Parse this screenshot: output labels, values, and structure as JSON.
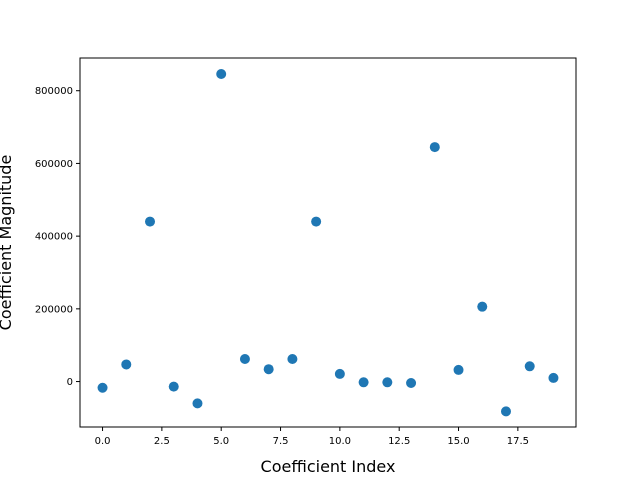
{
  "chart_data": {
    "type": "scatter",
    "title": "",
    "xlabel": "Coefficient Index",
    "ylabel": "Coefficient Magnitude",
    "xlim": [
      -0.95,
      19.95
    ],
    "ylim": [
      -125000,
      890000
    ],
    "xticks": [
      0.0,
      2.5,
      5.0,
      7.5,
      10.0,
      12.5,
      15.0,
      17.5
    ],
    "xtick_labels": [
      "0.0",
      "2.5",
      "5.0",
      "7.5",
      "10.0",
      "12.5",
      "15.0",
      "17.5"
    ],
    "yticks": [
      0,
      200000,
      400000,
      600000,
      800000
    ],
    "ytick_labels": [
      "0",
      "200000",
      "400000",
      "600000",
      "800000"
    ],
    "grid": false,
    "legend": "none",
    "marker_color": "#1f77b4",
    "series": [
      {
        "x": [
          0,
          1,
          2,
          3,
          4,
          5,
          6,
          7,
          8,
          9,
          10,
          11,
          12,
          13,
          14,
          15,
          16,
          17,
          18,
          19
        ],
        "y": [
          -17000,
          47000,
          440000,
          -14000,
          -60000,
          846000,
          62000,
          34000,
          62000,
          440000,
          21000,
          -2000,
          -2000,
          -4000,
          645000,
          32000,
          206000,
          -82000,
          42000,
          10000
        ]
      }
    ]
  }
}
